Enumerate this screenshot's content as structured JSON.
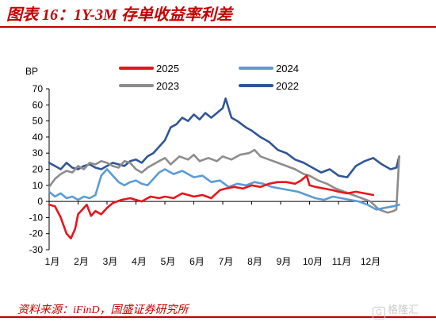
{
  "header": {
    "title": "图表 16：1Y-3M 存单收益率利差"
  },
  "footer": {
    "source": "资料来源：iFinD，国盛证券研究所"
  },
  "watermark": {
    "icon": "gelonghui-logo-icon",
    "text": "格隆汇"
  },
  "colors": {
    "title": "#c40000",
    "s2025": "#e8141c",
    "s2024": "#5b9bd5",
    "s2023": "#8c8c8c",
    "s2022": "#2f5597"
  },
  "chart_data": {
    "type": "line",
    "ylabel": "BP",
    "ylim": [
      -30,
      70
    ],
    "yticks": [
      -30,
      -20,
      -10,
      0,
      10,
      20,
      30,
      40,
      50,
      60,
      70
    ],
    "xlim": [
      1,
      13
    ],
    "x_tick_labels": [
      "1月",
      "2月",
      "3月",
      "4月",
      "5月",
      "6月",
      "7月",
      "8月",
      "9月",
      "10月",
      "11月",
      "12月"
    ],
    "zero_line": true,
    "grid": false,
    "legend": [
      "2025",
      "2024",
      "2023",
      "2022"
    ],
    "legend_placement": "top",
    "series": [
      {
        "name": "2025",
        "color": "#e8141c",
        "x": [
          1.0,
          1.2,
          1.4,
          1.6,
          1.75,
          1.9,
          2.0,
          2.15,
          2.3,
          2.45,
          2.6,
          2.8,
          3.0,
          3.2,
          3.5,
          3.8,
          4.0,
          4.2,
          4.5,
          4.8,
          5.0,
          5.3,
          5.6,
          6.0,
          6.3,
          6.6,
          6.9,
          7.1,
          7.4,
          7.7,
          8.0,
          8.3,
          8.6,
          8.9,
          9.2,
          9.5,
          9.7,
          9.9,
          10.0,
          10.2,
          10.5,
          10.8,
          11.0,
          11.3,
          11.6,
          11.9,
          12.2
        ],
        "y": [
          -2,
          -3,
          -10,
          -20,
          -23,
          -17,
          -8,
          -5,
          -2,
          -9,
          -6,
          -8,
          -4,
          -1,
          1,
          2,
          1,
          0,
          3,
          2,
          3,
          2,
          5,
          3,
          4,
          2,
          7,
          8,
          9,
          8,
          10,
          9,
          11,
          12,
          12,
          11,
          13,
          16,
          10,
          9,
          8,
          7,
          6,
          5,
          6,
          5,
          4
        ]
      },
      {
        "name": "2024",
        "color": "#5b9bd5",
        "x": [
          1.0,
          1.2,
          1.4,
          1.6,
          1.8,
          2.0,
          2.2,
          2.4,
          2.6,
          2.8,
          3.0,
          3.2,
          3.4,
          3.6,
          3.8,
          4.0,
          4.2,
          4.4,
          4.6,
          4.8,
          5.0,
          5.3,
          5.6,
          6.0,
          6.3,
          6.6,
          6.9,
          7.2,
          7.5,
          7.8,
          8.1,
          8.4,
          8.7,
          9.0,
          9.3,
          9.6,
          9.9,
          10.2,
          10.5,
          10.8,
          11.1,
          11.4,
          11.7,
          12.0,
          12.3,
          12.6,
          12.9,
          13.1
        ],
        "y": [
          6,
          3,
          5,
          2,
          3,
          1,
          3,
          2,
          4,
          16,
          20,
          16,
          12,
          10,
          12,
          13,
          11,
          10,
          14,
          18,
          20,
          17,
          19,
          15,
          16,
          12,
          13,
          9,
          11,
          10,
          12,
          11,
          9,
          8,
          7,
          6,
          4,
          2,
          1,
          3,
          2,
          1,
          0,
          -2,
          -5,
          -4,
          -3,
          -2
        ]
      },
      {
        "name": "2023",
        "color": "#8c8c8c",
        "x": [
          1.0,
          1.2,
          1.4,
          1.6,
          1.8,
          2.0,
          2.2,
          2.4,
          2.6,
          2.8,
          3.0,
          3.2,
          3.4,
          3.6,
          3.8,
          4.0,
          4.2,
          4.4,
          4.6,
          4.8,
          5.0,
          5.2,
          5.5,
          5.8,
          6.0,
          6.2,
          6.5,
          6.8,
          7.0,
          7.3,
          7.6,
          7.9,
          8.1,
          8.3,
          8.6,
          8.9,
          9.2,
          9.5,
          9.8,
          10.0,
          10.3,
          10.6,
          10.9,
          11.2,
          11.5,
          11.8,
          12.1,
          12.4,
          12.7,
          12.9,
          13.0,
          13.1
        ],
        "y": [
          9,
          14,
          17,
          19,
          18,
          22,
          20,
          24,
          23,
          25,
          24,
          22,
          21,
          25,
          24,
          20,
          18,
          21,
          23,
          25,
          27,
          23,
          28,
          26,
          29,
          25,
          27,
          25,
          28,
          26,
          29,
          30,
          32,
          28,
          26,
          24,
          22,
          20,
          17,
          16,
          13,
          11,
          8,
          6,
          4,
          2,
          0,
          -5,
          -7,
          -6,
          -5,
          28
        ]
      },
      {
        "name": "2022",
        "color": "#2f5597",
        "x": [
          1.0,
          1.2,
          1.4,
          1.6,
          1.8,
          2.0,
          2.2,
          2.4,
          2.6,
          2.8,
          3.0,
          3.2,
          3.4,
          3.6,
          3.8,
          4.0,
          4.2,
          4.4,
          4.6,
          4.8,
          5.0,
          5.2,
          5.4,
          5.6,
          5.8,
          6.0,
          6.2,
          6.4,
          6.6,
          6.8,
          7.0,
          7.1,
          7.3,
          7.5,
          7.8,
          8.0,
          8.3,
          8.6,
          8.9,
          9.2,
          9.5,
          9.8,
          10.1,
          10.4,
          10.7,
          11.0,
          11.3,
          11.6,
          11.9,
          12.2,
          12.5,
          12.8,
          13.0,
          13.1
        ],
        "y": [
          24,
          22,
          20,
          24,
          21,
          20,
          22,
          23,
          21,
          20,
          22,
          24,
          23,
          22,
          25,
          26,
          24,
          28,
          30,
          34,
          38,
          46,
          48,
          52,
          50,
          54,
          51,
          55,
          52,
          55,
          58,
          64,
          52,
          50,
          46,
          44,
          40,
          37,
          32,
          30,
          26,
          24,
          21,
          18,
          20,
          16,
          15,
          22,
          25,
          27,
          23,
          20,
          21,
          28
        ]
      }
    ]
  }
}
